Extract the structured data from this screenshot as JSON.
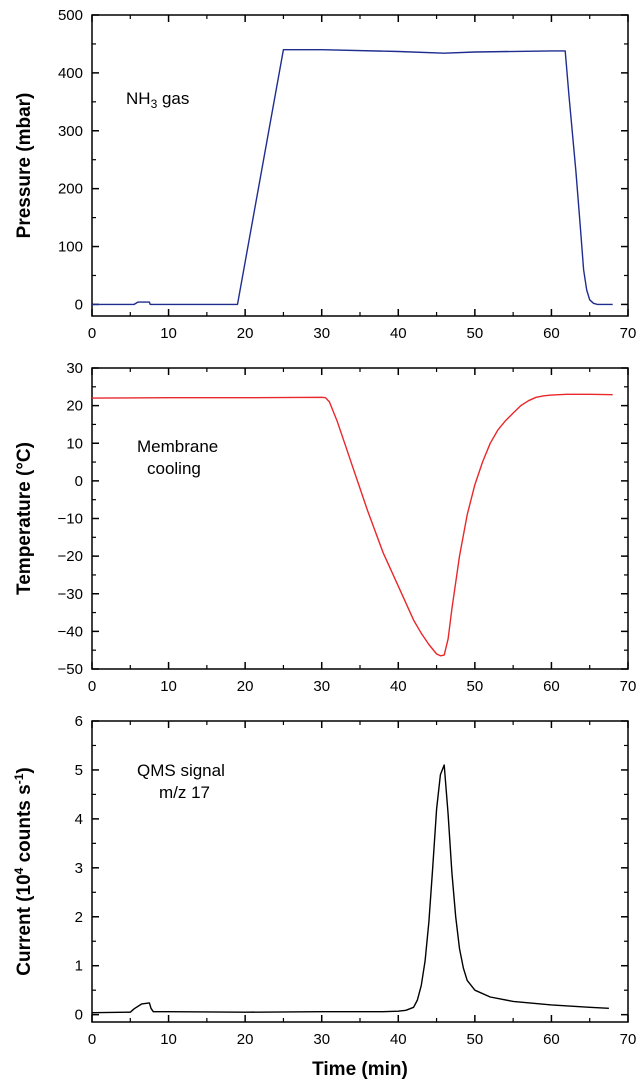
{
  "chart_data": [
    {
      "type": "line",
      "xlabel": "",
      "ylabel": "Pressure (mbar)",
      "xlim": [
        0,
        70
      ],
      "ylim": [
        -20,
        500
      ],
      "xticks": [
        0,
        10,
        20,
        30,
        40,
        50,
        60,
        70
      ],
      "yticks": [
        0,
        100,
        200,
        300,
        400,
        500
      ],
      "annotation": {
        "main": "NH",
        "sub": "3",
        "rest": " gas"
      },
      "grid": false,
      "series": [
        {
          "color": "#1f2d8f",
          "x": [
            0,
            5.5,
            6,
            7.5,
            7.6,
            19,
            25,
            30,
            40,
            46,
            50,
            60,
            61.8,
            62.3,
            63.2,
            63.8,
            64.2,
            64.6,
            65.0,
            65.5,
            66,
            68
          ],
          "y": [
            0,
            0,
            4,
            4,
            0,
            0,
            440,
            440,
            437,
            434,
            436,
            438,
            438,
            360,
            230,
            130,
            60,
            25,
            8,
            2,
            0,
            0
          ]
        }
      ]
    },
    {
      "type": "line",
      "xlabel": "",
      "ylabel": "Temperature (°C)",
      "xlim": [
        0,
        70
      ],
      "ylim": [
        -50,
        30
      ],
      "xticks": [
        0,
        10,
        20,
        30,
        40,
        50,
        60,
        70
      ],
      "yticks": [
        -50,
        -40,
        -30,
        -20,
        -10,
        0,
        10,
        20,
        30
      ],
      "annotation_lines": [
        "Membrane",
        "cooling"
      ],
      "grid": false,
      "series": [
        {
          "color": "#e8282b",
          "x": [
            0,
            10,
            20,
            30,
            30.5,
            31,
            32,
            33,
            34,
            35,
            36,
            38,
            40,
            42,
            43,
            44,
            45,
            45.5,
            46,
            46.5,
            47,
            48,
            49,
            50,
            51,
            52,
            53,
            54,
            55,
            56,
            57,
            58,
            59,
            60,
            62,
            65,
            68
          ],
          "y": [
            22,
            22.1,
            22.1,
            22.2,
            22.1,
            21,
            16,
            10,
            4,
            -2,
            -8,
            -19,
            -28,
            -37,
            -40.5,
            -43.5,
            -46,
            -46.5,
            -46.3,
            -42,
            -34,
            -20,
            -9,
            -1,
            5,
            10,
            13.5,
            16,
            18,
            20,
            21.3,
            22.2,
            22.6,
            22.8,
            23,
            23,
            22.9
          ]
        }
      ]
    },
    {
      "type": "line",
      "xlabel": "Time (min)",
      "ylabel": "Current (10^4 counts s^-1)",
      "ylabel_parts": [
        "Current (10",
        "4",
        " counts s",
        "-1",
        ")"
      ],
      "xlim": [
        0,
        70
      ],
      "ylim": [
        -0.15,
        6
      ],
      "xticks": [
        0,
        10,
        20,
        30,
        40,
        50,
        60,
        70
      ],
      "yticks": [
        0,
        1,
        2,
        3,
        4,
        5,
        6
      ],
      "annotation_lines": [
        "QMS signal",
        "m/z 17"
      ],
      "grid": false,
      "series": [
        {
          "color": "#000000",
          "x": [
            0,
            5,
            5.5,
            6.5,
            7.5,
            7.7,
            8,
            10,
            20,
            30,
            38,
            40,
            41,
            42,
            42.5,
            43,
            43.5,
            44,
            44.5,
            45,
            45.5,
            46,
            46.5,
            47,
            47.5,
            48,
            48.5,
            49,
            50,
            52,
            55,
            60,
            65,
            67.5
          ],
          "y": [
            0.04,
            0.05,
            0.12,
            0.22,
            0.24,
            0.13,
            0.06,
            0.06,
            0.05,
            0.06,
            0.06,
            0.07,
            0.09,
            0.15,
            0.3,
            0.6,
            1.1,
            1.9,
            3.0,
            4.2,
            4.9,
            5.1,
            4.1,
            2.9,
            2.0,
            1.35,
            0.95,
            0.7,
            0.5,
            0.36,
            0.27,
            0.2,
            0.15,
            0.13
          ]
        }
      ]
    }
  ]
}
